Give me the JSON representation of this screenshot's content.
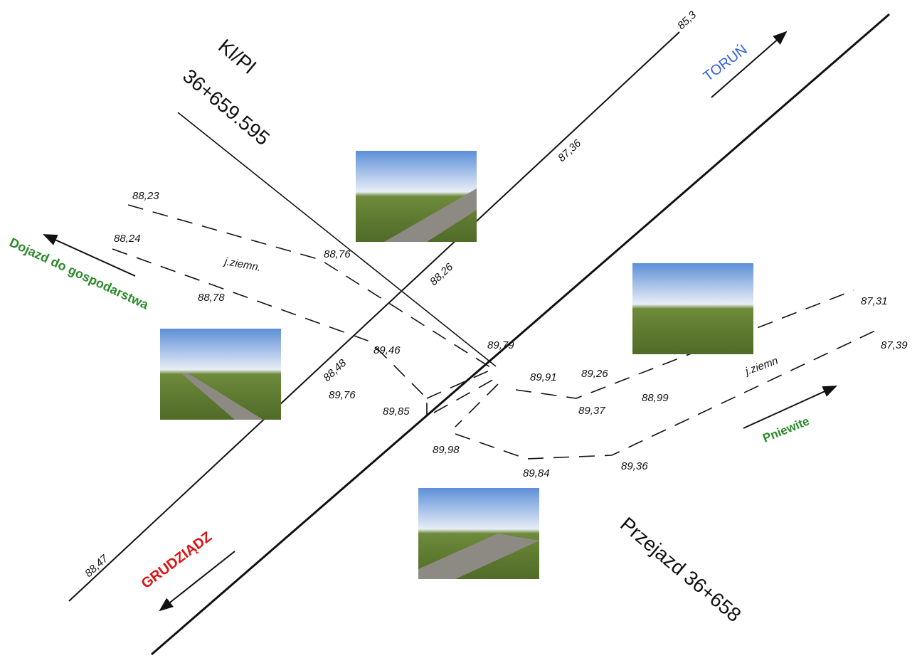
{
  "header": {
    "line_1": "Kl/Pl",
    "line_2": "36+659.595"
  },
  "directions": {
    "north_east": "TORUŃ",
    "south_west": "GRUDZIĄDZ",
    "farm": "Dojazd do gospodarstwa",
    "village": "Pniewite"
  },
  "crossing": "Przejazd 36+658",
  "soil_labels": [
    "j.ziemn.",
    "j.ziemn"
  ],
  "elevations": [
    "85,3",
    "87,36",
    "88,26",
    "88,48",
    "88,47",
    "88,23",
    "88,24",
    "88,76",
    "88,78",
    "89,46",
    "89,76",
    "89,85",
    "89,79",
    "89,91",
    "89,26",
    "89,37",
    "88,99",
    "87,31",
    "87,39",
    "89,98",
    "89,84",
    "89,36"
  ]
}
